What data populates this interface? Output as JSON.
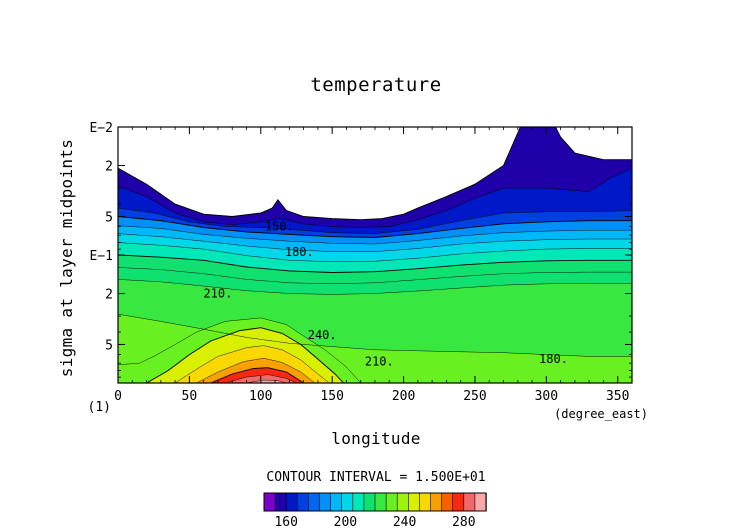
{
  "chart_data": {
    "type": "contour",
    "title": "temperature",
    "xlabel": "longitude",
    "ylabel": "sigma at layer midpoints",
    "x_unit": "(degree_east)",
    "y_unit": "(1)",
    "xlim": [
      0,
      360
    ],
    "ylim": [
      0.01,
      1.0
    ],
    "y_scale": "log",
    "y_reversed": true,
    "x_ticks": [
      "0",
      "50",
      "100",
      "150",
      "200",
      "250",
      "300",
      "350"
    ],
    "x_tick_values": [
      0,
      50,
      100,
      150,
      200,
      250,
      300,
      350
    ],
    "y_ticks": [
      "E−2",
      "2",
      "5",
      "E−1",
      "2",
      "5"
    ],
    "y_tick_values": [
      0.01,
      0.02,
      0.05,
      0.1,
      0.2,
      0.5
    ],
    "contour_interval_text": "CONTOUR INTERVAL = 1.500E+01",
    "contour_interval": 15,
    "contour_labels": [
      {
        "text": "150.",
        "lon": 113,
        "sigma": 0.06
      },
      {
        "text": "180.",
        "lon": 127,
        "sigma": 0.095
      },
      {
        "text": "210.",
        "lon": 70,
        "sigma": 0.2
      },
      {
        "text": "240.",
        "lon": 143,
        "sigma": 0.42
      },
      {
        "text": "210.",
        "lon": 183,
        "sigma": 0.68
      },
      {
        "text": "180.",
        "lon": 305,
        "sigma": 0.65
      }
    ],
    "colorbar": {
      "labels": [
        "160",
        "200",
        "240",
        "280"
      ],
      "label_values": [
        160,
        200,
        240,
        280
      ],
      "colors": [
        "#7b00c8",
        "#2000a8",
        "#0018c8",
        "#0040e0",
        "#0068f0",
        "#0090f8",
        "#00b8f8",
        "#00d8e8",
        "#00e8b8",
        "#10e070",
        "#38e840",
        "#68f020",
        "#a0f010",
        "#d8f000",
        "#f8d800",
        "#f8a000",
        "#f86000",
        "#f82810",
        "#f06868",
        "#f8a8a8"
      ]
    },
    "levels": [
      {
        "value": 150,
        "top": [
          [
            0,
            0.021
          ],
          [
            20,
            0.028
          ],
          [
            40,
            0.04
          ],
          [
            60,
            0.048
          ],
          [
            80,
            0.05
          ],
          [
            100,
            0.047
          ],
          [
            108,
            0.043
          ],
          [
            112,
            0.037
          ],
          [
            118,
            0.045
          ],
          [
            130,
            0.05
          ],
          [
            150,
            0.052
          ],
          [
            170,
            0.053
          ],
          [
            185,
            0.052
          ],
          [
            200,
            0.048
          ],
          [
            210,
            0.043
          ],
          [
            230,
            0.035
          ],
          [
            250,
            0.028
          ],
          [
            270,
            0.02
          ],
          [
            283,
            0.0093
          ],
          [
            305,
            0.0093
          ],
          [
            310,
            0.012
          ],
          [
            320,
            0.016
          ],
          [
            340,
            0.018
          ],
          [
            360,
            0.018
          ]
        ]
      },
      {
        "value": 160,
        "top": [
          [
            0,
            0.029
          ],
          [
            20,
            0.035
          ],
          [
            40,
            0.047
          ],
          [
            60,
            0.055
          ],
          [
            80,
            0.058
          ],
          [
            100,
            0.055
          ],
          [
            113,
            0.052
          ],
          [
            130,
            0.057
          ],
          [
            150,
            0.06
          ],
          [
            170,
            0.061
          ],
          [
            190,
            0.06
          ],
          [
            210,
            0.053
          ],
          [
            230,
            0.045
          ],
          [
            250,
            0.036
          ],
          [
            270,
            0.03
          ],
          [
            300,
            0.03
          ],
          [
            330,
            0.032
          ],
          [
            345,
            0.025
          ],
          [
            360,
            0.021
          ]
        ]
      },
      {
        "value": 170,
        "top": [
          [
            0,
            0.043
          ],
          [
            25,
            0.047
          ],
          [
            50,
            0.055
          ],
          [
            75,
            0.06
          ],
          [
            100,
            0.061
          ],
          [
            120,
            0.063
          ],
          [
            150,
            0.067
          ],
          [
            180,
            0.068
          ],
          [
            210,
            0.063
          ],
          [
            240,
            0.054
          ],
          [
            270,
            0.047
          ],
          [
            300,
            0.046
          ],
          [
            330,
            0.046
          ],
          [
            360,
            0.045
          ]
        ]
      },
      {
        "value": 180,
        "top": [
          [
            0,
            0.05
          ],
          [
            30,
            0.054
          ],
          [
            60,
            0.061
          ],
          [
            90,
            0.066
          ],
          [
            120,
            0.069
          ],
          [
            150,
            0.072
          ],
          [
            180,
            0.073
          ],
          [
            210,
            0.068
          ],
          [
            240,
            0.062
          ],
          [
            270,
            0.057
          ],
          [
            300,
            0.055
          ],
          [
            330,
            0.054
          ],
          [
            360,
            0.054
          ]
        ]
      },
      {
        "value": 190,
        "top": [
          [
            0,
            0.059
          ],
          [
            30,
            0.062
          ],
          [
            60,
            0.069
          ],
          [
            90,
            0.074
          ],
          [
            120,
            0.078
          ],
          [
            150,
            0.081
          ],
          [
            180,
            0.082
          ],
          [
            210,
            0.077
          ],
          [
            240,
            0.071
          ],
          [
            270,
            0.067
          ],
          [
            300,
            0.065
          ],
          [
            330,
            0.064
          ],
          [
            360,
            0.064
          ]
        ]
      },
      {
        "value": 200,
        "top": [
          [
            0,
            0.068
          ],
          [
            30,
            0.072
          ],
          [
            60,
            0.078
          ],
          [
            90,
            0.085
          ],
          [
            120,
            0.091
          ],
          [
            150,
            0.094
          ],
          [
            180,
            0.094
          ],
          [
            210,
            0.089
          ],
          [
            240,
            0.082
          ],
          [
            270,
            0.078
          ],
          [
            300,
            0.076
          ],
          [
            330,
            0.075
          ],
          [
            360,
            0.075
          ]
        ]
      },
      {
        "value": 205,
        "top": [
          [
            0,
            0.08
          ],
          [
            30,
            0.084
          ],
          [
            60,
            0.09
          ],
          [
            90,
            0.101
          ],
          [
            120,
            0.11
          ],
          [
            150,
            0.113
          ],
          [
            180,
            0.112
          ],
          [
            210,
            0.106
          ],
          [
            240,
            0.098
          ],
          [
            270,
            0.093
          ],
          [
            300,
            0.09
          ],
          [
            330,
            0.089
          ],
          [
            360,
            0.089
          ]
        ]
      },
      {
        "value": 210,
        "top": [
          [
            0,
            0.1
          ],
          [
            30,
            0.104
          ],
          [
            60,
            0.11
          ],
          [
            90,
            0.124
          ],
          [
            120,
            0.133
          ],
          [
            150,
            0.137
          ],
          [
            180,
            0.135
          ],
          [
            210,
            0.128
          ],
          [
            240,
            0.12
          ],
          [
            270,
            0.114
          ],
          [
            300,
            0.111
          ],
          [
            330,
            0.11
          ],
          [
            360,
            0.11
          ]
        ]
      },
      {
        "value": 215,
        "top": [
          [
            0,
            0.125
          ],
          [
            30,
            0.13
          ],
          [
            60,
            0.14
          ],
          [
            90,
            0.155
          ],
          [
            120,
            0.165
          ],
          [
            150,
            0.168
          ],
          [
            180,
            0.165
          ],
          [
            210,
            0.156
          ],
          [
            240,
            0.147
          ],
          [
            270,
            0.14
          ],
          [
            300,
            0.137
          ],
          [
            330,
            0.136
          ],
          [
            360,
            0.136
          ]
        ]
      },
      {
        "value": 220,
        "top": [
          [
            0,
            0.155
          ],
          [
            30,
            0.162
          ],
          [
            60,
            0.175
          ],
          [
            90,
            0.19
          ],
          [
            120,
            0.2
          ],
          [
            150,
            0.203
          ],
          [
            180,
            0.2
          ],
          [
            210,
            0.191
          ],
          [
            240,
            0.181
          ],
          [
            270,
            0.172
          ],
          [
            300,
            0.168
          ],
          [
            330,
            0.167
          ],
          [
            360,
            0.167
          ]
        ]
      },
      {
        "value": 225,
        "top": [
          [
            0,
            0.29
          ],
          [
            30,
            0.33
          ],
          [
            60,
            0.38
          ],
          [
            90,
            0.44
          ],
          [
            120,
            0.49
          ],
          [
            150,
            0.52
          ],
          [
            180,
            0.55
          ],
          [
            210,
            0.56
          ],
          [
            240,
            0.57
          ],
          [
            270,
            0.58
          ],
          [
            300,
            0.6
          ],
          [
            330,
            0.62
          ],
          [
            360,
            0.62
          ]
        ]
      },
      {
        "value": 230,
        "top": [
          [
            0,
            0.72
          ],
          [
            15,
            0.7
          ],
          [
            25,
            0.62
          ],
          [
            40,
            0.5
          ],
          [
            55,
            0.4
          ],
          [
            75,
            0.33
          ],
          [
            100,
            0.31
          ],
          [
            118,
            0.35
          ],
          [
            130,
            0.43
          ],
          [
            145,
            0.55
          ],
          [
            160,
            0.75
          ],
          [
            170,
            1.0
          ]
        ]
      },
      {
        "value": 240,
        "top": [
          [
            20,
            1.0
          ],
          [
            35,
            0.8
          ],
          [
            50,
            0.6
          ],
          [
            65,
            0.47
          ],
          [
            85,
            0.39
          ],
          [
            100,
            0.37
          ],
          [
            115,
            0.41
          ],
          [
            128,
            0.5
          ],
          [
            140,
            0.65
          ],
          [
            152,
            0.85
          ],
          [
            158,
            1.0
          ]
        ]
      },
      {
        "value": 250,
        "top": [
          [
            40,
            1.0
          ],
          [
            55,
            0.78
          ],
          [
            70,
            0.62
          ],
          [
            90,
            0.53
          ],
          [
            102,
            0.51
          ],
          [
            115,
            0.55
          ],
          [
            128,
            0.66
          ],
          [
            140,
            0.85
          ],
          [
            148,
            1.0
          ]
        ]
      },
      {
        "value": 260,
        "top": [
          [
            55,
            1.0
          ],
          [
            70,
            0.82
          ],
          [
            88,
            0.68
          ],
          [
            102,
            0.64
          ],
          [
            115,
            0.69
          ],
          [
            128,
            0.82
          ],
          [
            138,
            1.0
          ]
        ]
      },
      {
        "value": 270,
        "top": [
          [
            65,
            1.0
          ],
          [
            80,
            0.85
          ],
          [
            95,
            0.77
          ],
          [
            105,
            0.76
          ],
          [
            118,
            0.82
          ],
          [
            130,
            1.0
          ]
        ]
      },
      {
        "value": 280,
        "top": [
          [
            75,
            1.0
          ],
          [
            90,
            0.9
          ],
          [
            105,
            0.86
          ],
          [
            118,
            0.92
          ],
          [
            125,
            1.0
          ]
        ]
      },
      {
        "value": 290,
        "top": [
          [
            90,
            1.0
          ],
          [
            102,
            0.95
          ],
          [
            112,
            0.96
          ],
          [
            118,
            1.0
          ]
        ]
      }
    ]
  }
}
